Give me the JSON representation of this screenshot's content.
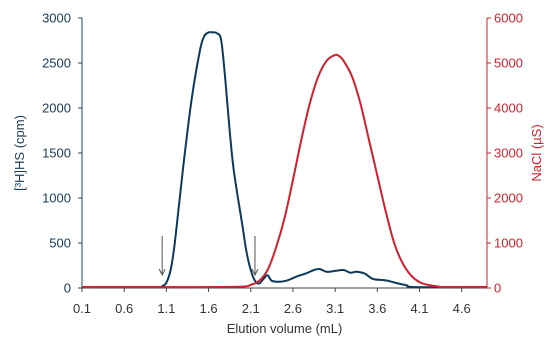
{
  "chart_data": {
    "type": "line",
    "title": "",
    "xlabel": "Elution volume (mL)",
    "ylabel_left": "[³H]HS (cpm)",
    "ylabel_right": "NaCl (µS)",
    "xlim": [
      0.1,
      4.9
    ],
    "ylim_left": [
      0,
      3000
    ],
    "ylim_right": [
      0,
      6000
    ],
    "x_ticks": [
      "0.1",
      "0.6",
      "1.1",
      "1.6",
      "2.1",
      "2.6",
      "3.1",
      "3.6",
      "4.1",
      "4.6"
    ],
    "y_left_ticks": [
      "0",
      "500",
      "1000",
      "1500",
      "2000",
      "2500",
      "3000"
    ],
    "y_right_ticks": [
      "0",
      "1000",
      "2000",
      "3000",
      "4000",
      "5000",
      "6000"
    ],
    "grid": false,
    "legend": "none",
    "colors": {
      "hs": "#0d3a5c",
      "nacl": "#d0202f",
      "axis_right": "#d0202f",
      "arrow": "#555555"
    },
    "arrows_at_x": [
      1.05,
      2.15
    ],
    "series": [
      {
        "axis": "left",
        "x": [
          0.1,
          1.0,
          1.05,
          1.1,
          1.15,
          1.2,
          1.3,
          1.4,
          1.5,
          1.55,
          1.6,
          1.65,
          1.7,
          1.75,
          1.8,
          1.85,
          1.9,
          2.0,
          2.05,
          2.1,
          2.15,
          2.2,
          2.25,
          2.3,
          2.35,
          2.45,
          2.55,
          2.65,
          2.75,
          2.85,
          2.92,
          3.0,
          3.1,
          3.2,
          3.28,
          3.35,
          3.45,
          3.55,
          3.7,
          3.85,
          3.95,
          4.05,
          4.9
        ],
        "y": [
          10,
          10,
          20,
          60,
          200,
          500,
          1350,
          2100,
          2650,
          2800,
          2840,
          2840,
          2830,
          2750,
          2300,
          1750,
          1300,
          700,
          400,
          200,
          80,
          50,
          100,
          140,
          80,
          70,
          90,
          130,
          160,
          200,
          210,
          180,
          190,
          200,
          170,
          180,
          160,
          100,
          85,
          50,
          30,
          10,
          10
        ]
      },
      {
        "axis": "right",
        "x": [
          0.1,
          1.5,
          2.0,
          2.1,
          2.2,
          2.3,
          2.4,
          2.5,
          2.6,
          2.7,
          2.8,
          2.9,
          3.0,
          3.1,
          3.15,
          3.2,
          3.3,
          3.4,
          3.5,
          3.6,
          3.7,
          3.8,
          3.9,
          4.0,
          4.1,
          4.2,
          4.3,
          4.4,
          4.9
        ],
        "y": [
          20,
          20,
          30,
          70,
          160,
          400,
          900,
          1550,
          2400,
          3300,
          4100,
          4700,
          5050,
          5180,
          5150,
          5050,
          4700,
          4100,
          3300,
          2500,
          1700,
          1000,
          550,
          280,
          130,
          70,
          40,
          20,
          20
        ]
      }
    ]
  }
}
